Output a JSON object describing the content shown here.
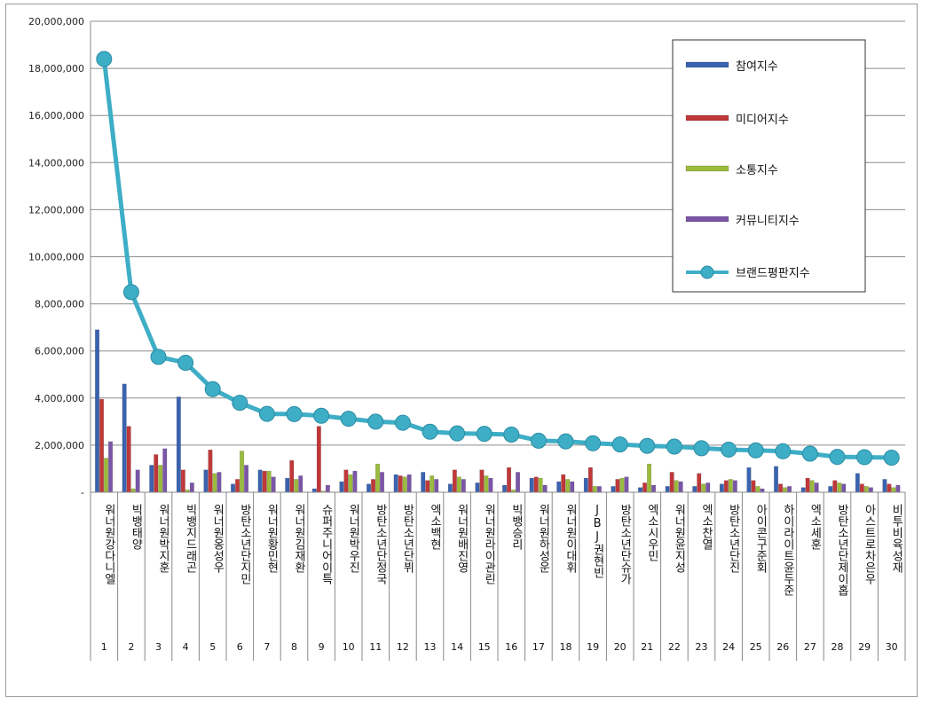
{
  "chart_data": {
    "type": "bar",
    "title": "",
    "xlabel": "",
    "ylabel": "",
    "ylim": [
      0,
      20000000
    ],
    "yticks": [
      0,
      2000000,
      4000000,
      6000000,
      8000000,
      10000000,
      12000000,
      14000000,
      16000000,
      18000000,
      20000000
    ],
    "ytick_labels": [
      "-",
      "2,000,000",
      "4,000,000",
      "6,000,000",
      "8,000,000",
      "10,000,000",
      "12,000,000",
      "14,000,000",
      "16,000,000",
      "18,000,000",
      "20,000,000"
    ],
    "grid": true,
    "legend_position": "top-right",
    "ranks": [
      "1",
      "2",
      "3",
      "4",
      "5",
      "6",
      "7",
      "8",
      "9",
      "10",
      "11",
      "12",
      "13",
      "14",
      "15",
      "16",
      "17",
      "18",
      "19",
      "20",
      "21",
      "22",
      "23",
      "24",
      "25",
      "26",
      "27",
      "28",
      "29",
      "30"
    ],
    "categories": [
      "워너원강다니엘",
      "빅뱅태양",
      "워너원박지훈",
      "빅뱅지드래곤",
      "워너원옹성우",
      "방탄소년단지민",
      "워너원황민현",
      "워너원김재환",
      "슈퍼주니어이특",
      "워너원박우진",
      "방탄소년단정국",
      "방탄소년단뷔",
      "엑소백현",
      "워너원배진영",
      "워너원라이관린",
      "빅뱅승리",
      "워너원하성운",
      "워너원이대휘",
      "JBJ권현빈",
      "방탄소년단슈가",
      "엑소시우민",
      "워너원윤지성",
      "엑소찬열",
      "방탄소년단진",
      "아이콘구준회",
      "하이라이트윤두준",
      "엑소세훈",
      "방탄소년단제이홉",
      "아스트로차은우",
      "비투비육성재"
    ],
    "series": [
      {
        "name": "참여지수",
        "kind": "bar",
        "color": "#3a63b0",
        "values": [
          6900000,
          4600000,
          1150000,
          4050000,
          950000,
          350000,
          950000,
          600000,
          150000,
          450000,
          350000,
          750000,
          850000,
          350000,
          400000,
          300000,
          600000,
          450000,
          600000,
          250000,
          200000,
          250000,
          250000,
          350000,
          1050000,
          1100000,
          200000,
          250000,
          800000,
          550000
        ]
      },
      {
        "name": "미디어지수",
        "kind": "bar",
        "color": "#c0383a",
        "values": [
          3950000,
          2800000,
          1600000,
          950000,
          1800000,
          550000,
          900000,
          1350000,
          2800000,
          950000,
          550000,
          700000,
          500000,
          950000,
          950000,
          1050000,
          650000,
          750000,
          1050000,
          550000,
          400000,
          850000,
          800000,
          500000,
          500000,
          350000,
          600000,
          500000,
          350000,
          350000
        ]
      },
      {
        "name": "소통지수",
        "kind": "bar",
        "color": "#9bbb3c",
        "values": [
          1450000,
          150000,
          1150000,
          100000,
          800000,
          1750000,
          900000,
          550000,
          50000,
          750000,
          1200000,
          650000,
          700000,
          650000,
          700000,
          100000,
          600000,
          550000,
          250000,
          600000,
          1200000,
          500000,
          350000,
          550000,
          250000,
          200000,
          500000,
          400000,
          250000,
          200000
        ]
      },
      {
        "name": "커뮤니티지수",
        "kind": "bar",
        "color": "#7b56a8",
        "values": [
          2150000,
          950000,
          1850000,
          400000,
          850000,
          1150000,
          650000,
          700000,
          300000,
          900000,
          850000,
          750000,
          550000,
          550000,
          600000,
          850000,
          300000,
          450000,
          250000,
          650000,
          300000,
          450000,
          400000,
          500000,
          150000,
          250000,
          400000,
          350000,
          200000,
          300000
        ]
      },
      {
        "name": "브랜드평판지수",
        "kind": "line",
        "color": "#3eaec6",
        "values": [
          18400000,
          8500000,
          5750000,
          5500000,
          4380000,
          3800000,
          3330000,
          3320000,
          3250000,
          3120000,
          3000000,
          2950000,
          2570000,
          2500000,
          2480000,
          2450000,
          2190000,
          2160000,
          2080000,
          2030000,
          1970000,
          1940000,
          1870000,
          1810000,
          1780000,
          1740000,
          1640000,
          1500000,
          1490000,
          1470000
        ]
      }
    ]
  }
}
